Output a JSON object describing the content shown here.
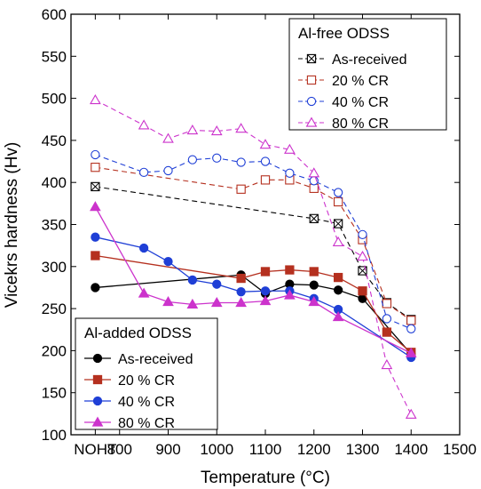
{
  "chart_data": {
    "type": "line",
    "xlabel": "Temperature (°C)",
    "ylabel": "Vicekrs hardness (Hv)",
    "xlim": [
      700,
      1500
    ],
    "ylim": [
      100,
      600
    ],
    "x_ticks": [
      {
        "value": 750,
        "label": "NOHT"
      },
      {
        "value": 800,
        "label": "800"
      },
      {
        "value": 900,
        "label": "900"
      },
      {
        "value": 1000,
        "label": "1000"
      },
      {
        "value": 1100,
        "label": "1100"
      },
      {
        "value": 1200,
        "label": "1200"
      },
      {
        "value": 1300,
        "label": "1300"
      },
      {
        "value": 1400,
        "label": "1400"
      },
      {
        "value": 1500,
        "label": "1500"
      }
    ],
    "y_ticks": [
      100,
      150,
      200,
      250,
      300,
      350,
      400,
      450,
      500,
      550,
      600
    ],
    "grid": false,
    "groups": [
      {
        "title": "Al-free ODSS",
        "legend_position": "top-right",
        "line_style": "dashed",
        "marker_fill": "open",
        "series": [
          {
            "name": "As-received",
            "color": "#000000",
            "marker": "square-x",
            "points": [
              [
                750,
                395
              ],
              [
                1200,
                357
              ],
              [
                1250,
                351
              ],
              [
                1300,
                295
              ],
              [
                1350,
                257
              ],
              [
                1400,
                237
              ]
            ]
          },
          {
            "name": "20 % CR",
            "color": "#b5301f",
            "marker": "square",
            "points": [
              [
                750,
                418
              ],
              [
                1050,
                392
              ],
              [
                1100,
                403
              ],
              [
                1150,
                403
              ],
              [
                1200,
                393
              ],
              [
                1250,
                377
              ],
              [
                1300,
                332
              ],
              [
                1350,
                256
              ],
              [
                1400,
                236
              ]
            ]
          },
          {
            "name": "40 % CR",
            "color": "#1f3fd6",
            "marker": "circle",
            "points": [
              [
                750,
                433
              ],
              [
                850,
                412
              ],
              [
                900,
                414
              ],
              [
                950,
                427
              ],
              [
                1000,
                429
              ],
              [
                1050,
                424
              ],
              [
                1100,
                425
              ],
              [
                1150,
                411
              ],
              [
                1200,
                402
              ],
              [
                1250,
                388
              ],
              [
                1300,
                338
              ],
              [
                1350,
                238
              ],
              [
                1400,
                226
              ]
            ]
          },
          {
            "name": "80 % CR",
            "color": "#cc33cc",
            "marker": "triangle",
            "points": [
              [
                750,
                498
              ],
              [
                850,
                468
              ],
              [
                900,
                452
              ],
              [
                950,
                462
              ],
              [
                1000,
                461
              ],
              [
                1050,
                464
              ],
              [
                1100,
                445
              ],
              [
                1150,
                439
              ],
              [
                1200,
                411
              ],
              [
                1250,
                329
              ],
              [
                1300,
                312
              ],
              [
                1350,
                183
              ],
              [
                1400,
                124
              ]
            ]
          }
        ]
      },
      {
        "title": "Al-added ODSS",
        "legend_position": "bottom-left",
        "line_style": "solid",
        "marker_fill": "filled",
        "series": [
          {
            "name": "As-received",
            "color": "#000000",
            "marker": "circle-x",
            "points": [
              [
                750,
                275
              ],
              [
                1050,
                290
              ],
              [
                1100,
                268
              ],
              [
                1150,
                279
              ],
              [
                1200,
                278
              ],
              [
                1250,
                272
              ],
              [
                1300,
                262
              ],
              [
                1400,
                196
              ]
            ]
          },
          {
            "name": "20 % CR",
            "color": "#b5301f",
            "marker": "square",
            "points": [
              [
                750,
                313
              ],
              [
                1050,
                286
              ],
              [
                1100,
                294
              ],
              [
                1150,
                296
              ],
              [
                1200,
                294
              ],
              [
                1250,
                287
              ],
              [
                1300,
                271
              ],
              [
                1350,
                222
              ],
              [
                1400,
                198
              ]
            ]
          },
          {
            "name": "40 % CR",
            "color": "#1f3fd6",
            "marker": "circle",
            "points": [
              [
                750,
                335
              ],
              [
                850,
                322
              ],
              [
                900,
                306
              ],
              [
                950,
                284
              ],
              [
                1000,
                279
              ],
              [
                1050,
                270
              ],
              [
                1100,
                271
              ],
              [
                1150,
                271
              ],
              [
                1200,
                262
              ],
              [
                1250,
                249
              ],
              [
                1400,
                192
              ]
            ]
          },
          {
            "name": "80 % CR",
            "color": "#cc33cc",
            "marker": "triangle",
            "points": [
              [
                750,
                371
              ],
              [
                850,
                268
              ],
              [
                900,
                258
              ],
              [
                950,
                255
              ],
              [
                1000,
                257
              ],
              [
                1050,
                257
              ],
              [
                1100,
                259
              ],
              [
                1150,
                266
              ],
              [
                1200,
                258
              ],
              [
                1250,
                240
              ],
              [
                1400,
                197
              ]
            ]
          }
        ]
      }
    ]
  }
}
